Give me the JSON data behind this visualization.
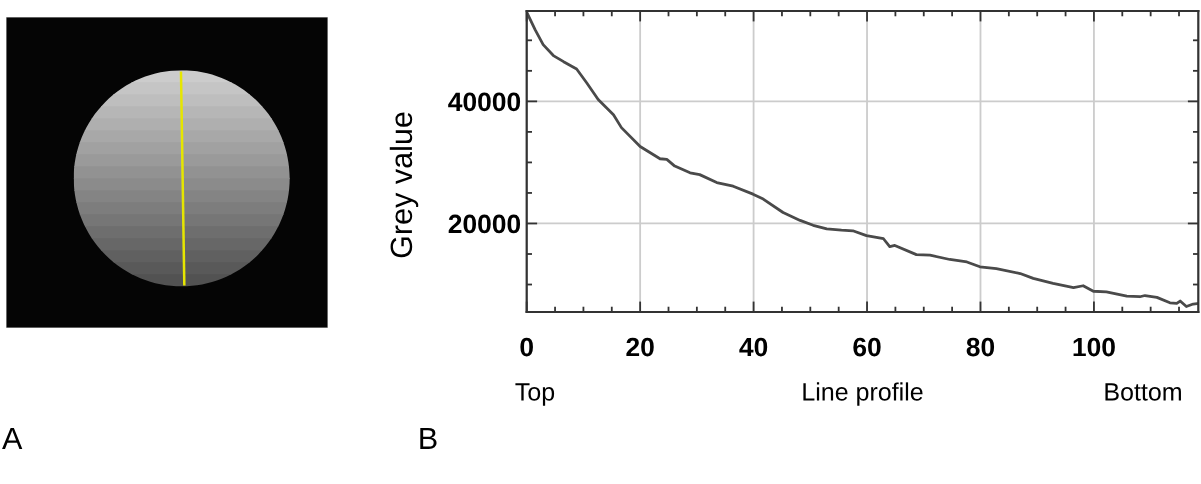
{
  "chart_data": {
    "type": "line",
    "xlabel": "Line profile",
    "ylabel": "Grey value",
    "annotations": [
      "Top",
      "Bottom",
      "A",
      "B"
    ],
    "x": [
      0,
      1.5,
      2.9,
      4.7,
      6.5,
      8.8,
      10.6,
      12.6,
      15.3,
      16.7,
      20,
      23.5,
      24.7,
      26.1,
      28.8,
      30.5,
      33.5,
      36.4,
      39.9,
      41.7,
      45.2,
      48.2,
      50.5,
      52.9,
      55.5,
      57.5,
      59.9,
      62.9,
      64,
      64.9,
      68.7,
      71.1,
      74.6,
      77.6,
      79.9,
      82.8,
      87,
      89.3,
      92.8,
      96.4,
      98.1,
      99.9,
      102.2,
      105.8,
      108.1,
      109,
      111.1,
      113.4,
      114.6,
      115.2,
      116.3,
      117.5,
      118.4
    ],
    "series": [
      {
        "color": "#4a4a4a",
        "values": [
          54600,
          51700,
          49300,
          47500,
          46500,
          45300,
          43000,
          40300,
          37800,
          35700,
          32600,
          30600,
          30500,
          29400,
          28300,
          28000,
          26700,
          26100,
          24800,
          24000,
          21800,
          20500,
          19700,
          19100,
          18900,
          18800,
          18000,
          17500,
          16200,
          16400,
          14900,
          14800,
          14100,
          13700,
          12900,
          12600,
          11800,
          11000,
          10200,
          9500,
          9800,
          8900,
          8800,
          8100,
          8000,
          8200,
          7900,
          7000,
          6900,
          7300,
          6400,
          6800,
          6900
        ]
      }
    ],
    "xlim": [
      0,
      118.4
    ],
    "ylim": [
      5500,
      54800
    ],
    "xticks": [
      0,
      20,
      40,
      60,
      80,
      100
    ],
    "yticks": [
      20000,
      40000
    ],
    "grid": true,
    "line_style": "solid"
  }
}
